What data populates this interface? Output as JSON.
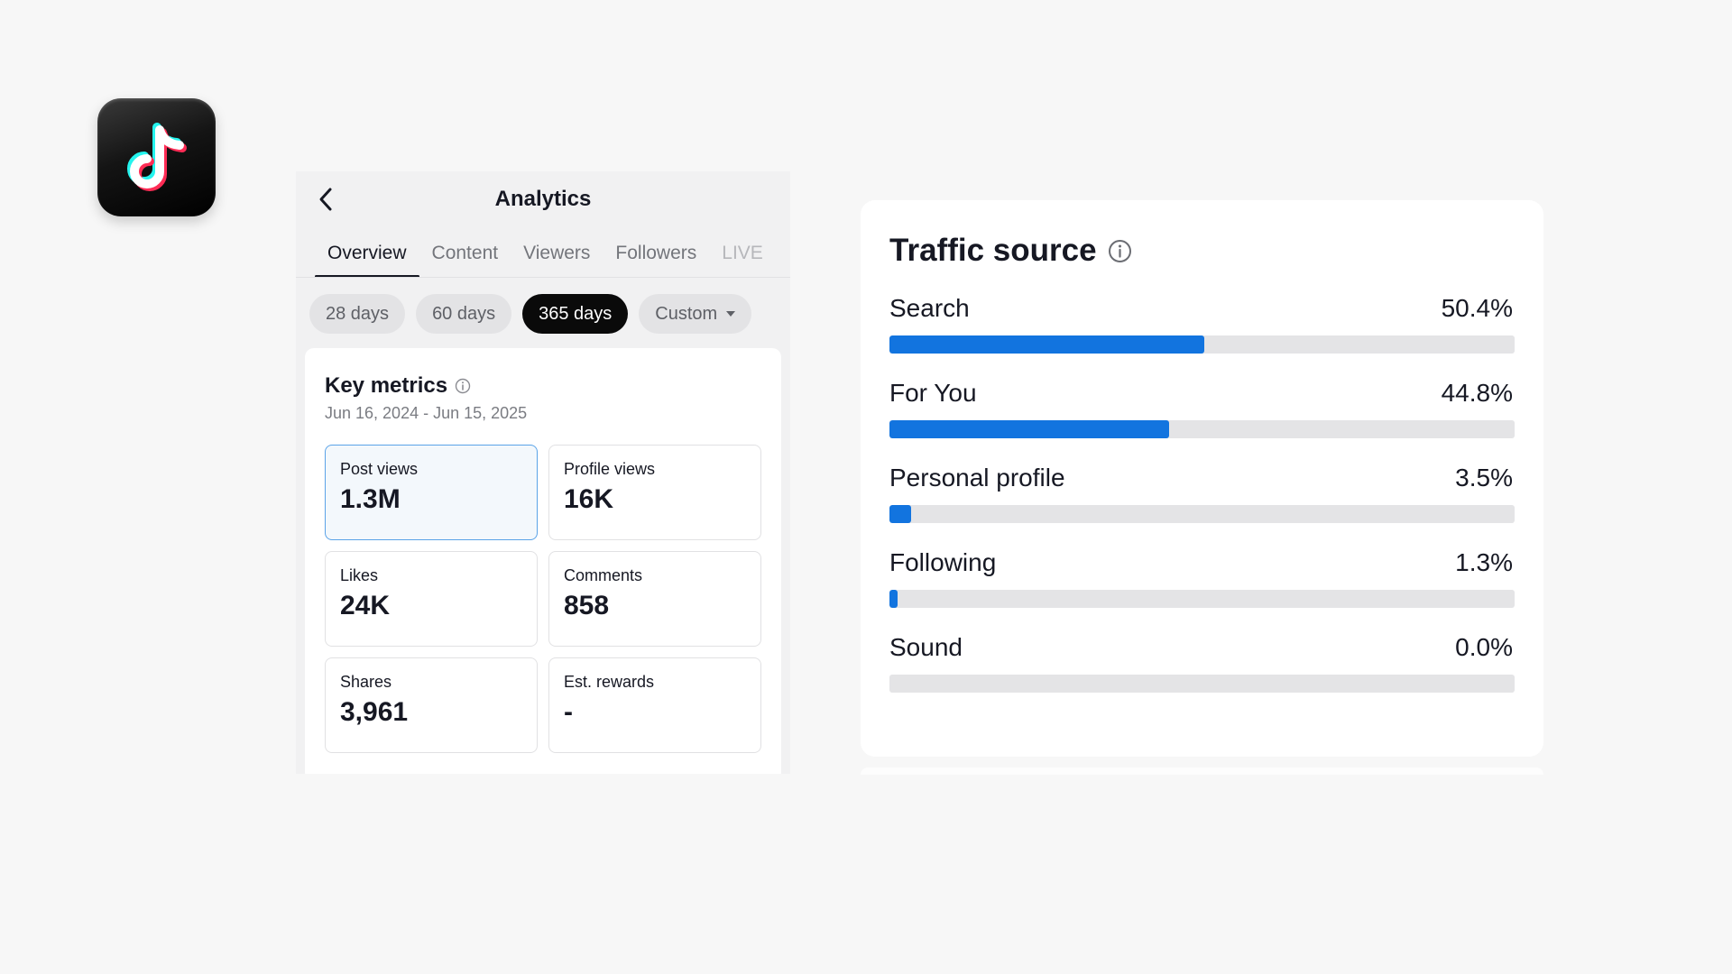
{
  "analytics": {
    "title": "Analytics",
    "tabs": [
      {
        "label": "Overview",
        "active": true
      },
      {
        "label": "Content"
      },
      {
        "label": "Viewers"
      },
      {
        "label": "Followers"
      },
      {
        "label": "LIVE"
      }
    ],
    "ranges": [
      {
        "label": "28 days"
      },
      {
        "label": "60 days"
      },
      {
        "label": "365 days",
        "active": true
      },
      {
        "label": "Custom"
      }
    ],
    "key_metrics": {
      "title": "Key metrics",
      "date_range": "Jun 16, 2024 - Jun 15, 2025",
      "items": [
        {
          "label": "Post views",
          "value": "1.3M"
        },
        {
          "label": "Profile views",
          "value": "16K"
        },
        {
          "label": "Likes",
          "value": "24K"
        },
        {
          "label": "Comments",
          "value": "858"
        },
        {
          "label": "Shares",
          "value": "3,961"
        },
        {
          "label": "Est. rewards",
          "value": "-"
        }
      ]
    }
  },
  "traffic": {
    "title": "Traffic source",
    "accent_color": "#1274df",
    "sources": [
      {
        "name": "Search",
        "pct_label": "50.4%",
        "pct": 50.4
      },
      {
        "name": "For You",
        "pct_label": "44.8%",
        "pct": 44.8
      },
      {
        "name": "Personal profile",
        "pct_label": "3.5%",
        "pct": 3.5
      },
      {
        "name": "Following",
        "pct_label": "1.3%",
        "pct": 1.3
      },
      {
        "name": "Sound",
        "pct_label": "0.0%",
        "pct": 0.0
      }
    ]
  },
  "icons": {
    "logo": "tiktok-logo-icon",
    "back": "chevron-left-icon",
    "info": "info-icon",
    "dropdown": "caret-down-icon"
  }
}
